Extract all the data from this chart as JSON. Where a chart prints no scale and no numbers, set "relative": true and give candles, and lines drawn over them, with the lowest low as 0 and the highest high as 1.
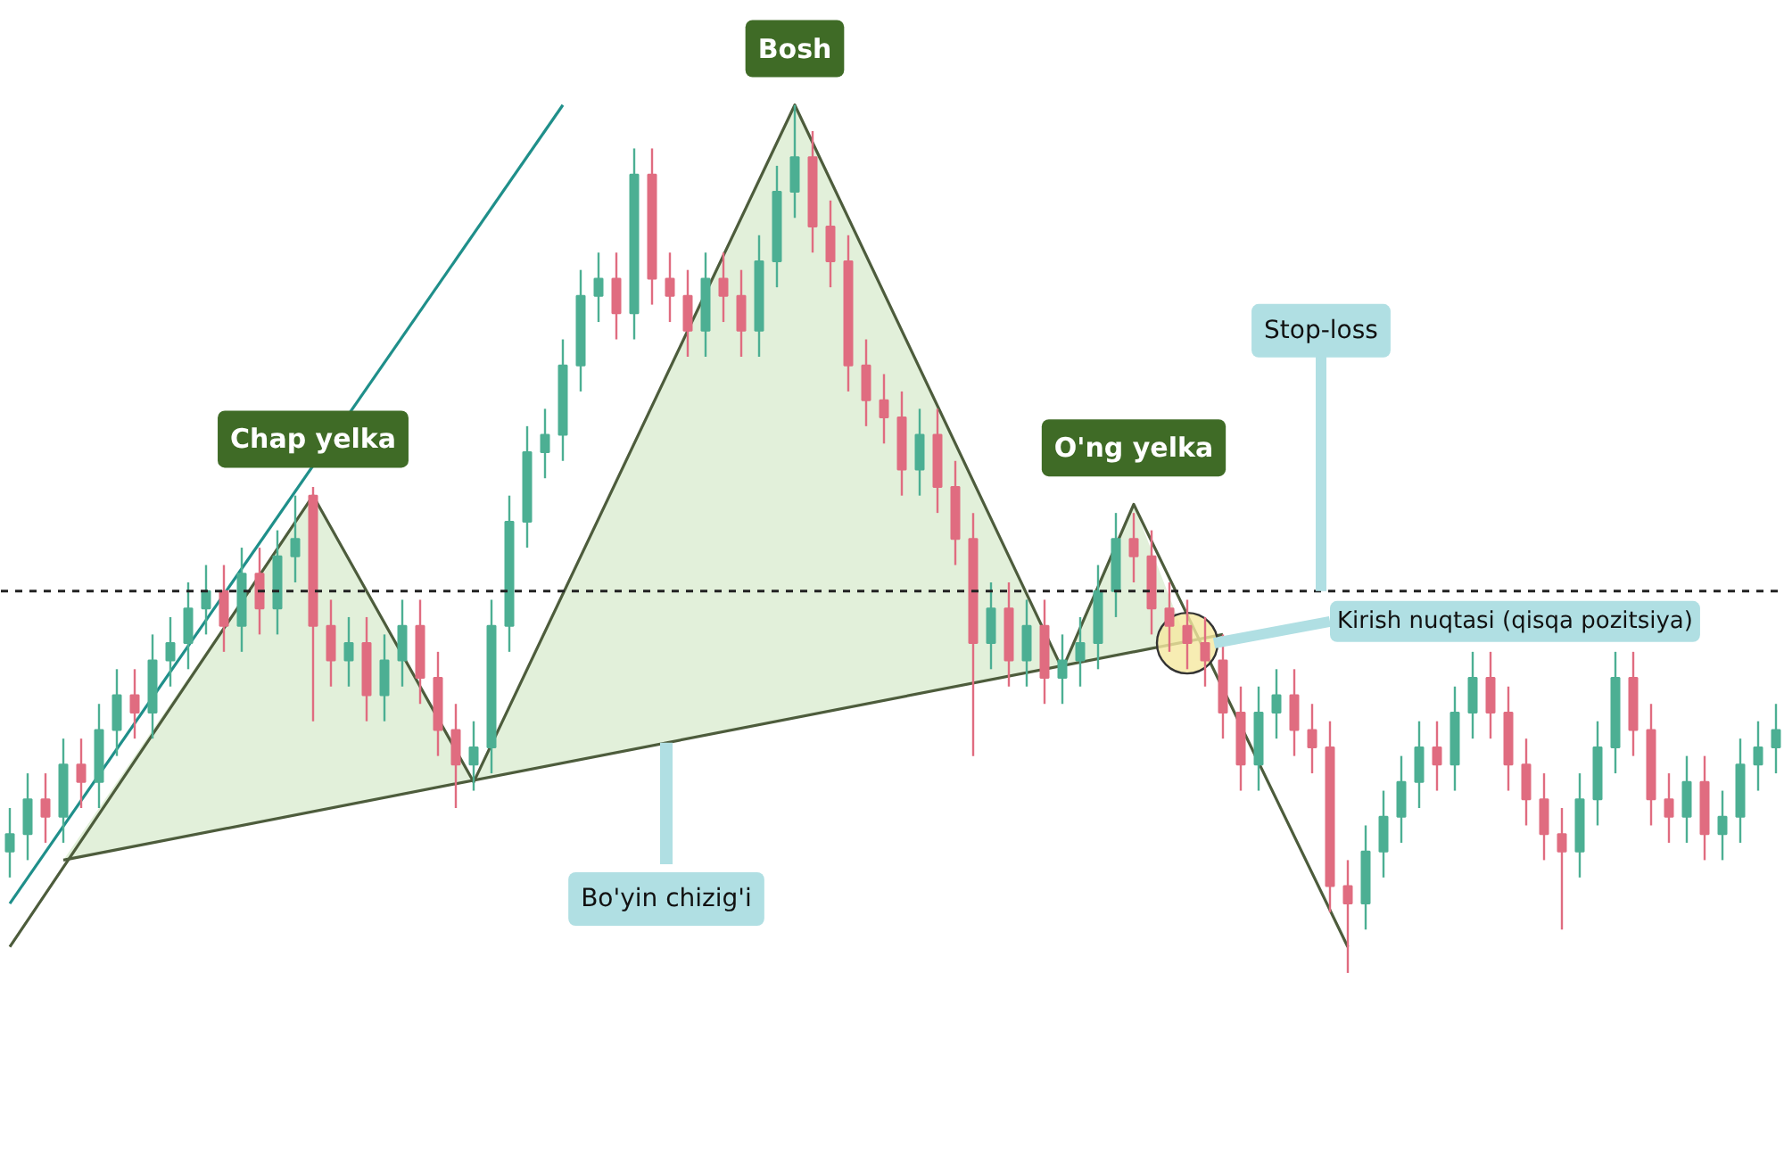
{
  "chart_data": {
    "type": "candlestick",
    "relative": true,
    "categories": [
      null,
      null,
      null,
      null,
      null,
      null,
      null,
      null,
      null,
      null,
      null,
      null,
      null,
      null,
      null,
      null,
      null,
      null,
      null,
      null,
      null,
      null,
      null,
      null,
      null,
      null,
      null,
      null,
      null,
      null,
      null,
      null,
      null,
      null,
      null,
      null,
      null,
      null,
      null,
      null,
      null,
      null,
      null,
      null,
      null,
      null,
      null,
      null,
      null,
      null,
      null,
      null,
      null,
      null,
      null,
      null,
      null,
      null,
      null,
      null,
      null,
      null,
      null,
      null,
      null,
      null,
      null,
      null,
      null,
      null,
      null,
      null,
      null,
      null,
      null,
      null,
      null,
      null,
      null,
      null,
      null,
      null,
      null,
      null,
      null,
      null,
      null,
      null,
      null,
      null,
      null,
      null,
      null,
      null,
      null,
      null,
      null,
      null,
      null,
      null
    ],
    "ohlc": [
      [
        0.14,
        0.19,
        0.11,
        0.16
      ],
      [
        0.16,
        0.23,
        0.13,
        0.2
      ],
      [
        0.2,
        0.23,
        0.15,
        0.18
      ],
      [
        0.18,
        0.27,
        0.15,
        0.24
      ],
      [
        0.24,
        0.27,
        0.19,
        0.22
      ],
      [
        0.22,
        0.31,
        0.19,
        0.28
      ],
      [
        0.28,
        0.35,
        0.25,
        0.32
      ],
      [
        0.32,
        0.35,
        0.27,
        0.3
      ],
      [
        0.3,
        0.39,
        0.27,
        0.36
      ],
      [
        0.36,
        0.41,
        0.33,
        0.38
      ],
      [
        0.38,
        0.45,
        0.35,
        0.42
      ],
      [
        0.42,
        0.47,
        0.39,
        0.44
      ],
      [
        0.44,
        0.47,
        0.37,
        0.4
      ],
      [
        0.4,
        0.49,
        0.37,
        0.46
      ],
      [
        0.46,
        0.49,
        0.39,
        0.42
      ],
      [
        0.42,
        0.51,
        0.39,
        0.48
      ],
      [
        0.48,
        0.55,
        0.45,
        0.5
      ],
      [
        0.55,
        0.56,
        0.29,
        0.4
      ],
      [
        0.4,
        0.43,
        0.33,
        0.36
      ],
      [
        0.36,
        0.41,
        0.33,
        0.38
      ],
      [
        0.38,
        0.41,
        0.29,
        0.32
      ],
      [
        0.32,
        0.39,
        0.29,
        0.36
      ],
      [
        0.36,
        0.43,
        0.33,
        0.4
      ],
      [
        0.4,
        0.43,
        0.31,
        0.34
      ],
      [
        0.34,
        0.37,
        0.25,
        0.28
      ],
      [
        0.28,
        0.31,
        0.19,
        0.24
      ],
      [
        0.24,
        0.29,
        0.21,
        0.26
      ],
      [
        0.26,
        0.43,
        0.23,
        0.4
      ],
      [
        0.4,
        0.55,
        0.37,
        0.52
      ],
      [
        0.52,
        0.63,
        0.49,
        0.6
      ],
      [
        0.6,
        0.65,
        0.57,
        0.62
      ],
      [
        0.62,
        0.73,
        0.59,
        0.7
      ],
      [
        0.7,
        0.81,
        0.67,
        0.78
      ],
      [
        0.78,
        0.83,
        0.75,
        0.8
      ],
      [
        0.8,
        0.83,
        0.73,
        0.76
      ],
      [
        0.76,
        0.95,
        0.73,
        0.92
      ],
      [
        0.92,
        0.95,
        0.77,
        0.8
      ],
      [
        0.8,
        0.83,
        0.75,
        0.78
      ],
      [
        0.78,
        0.81,
        0.71,
        0.74
      ],
      [
        0.74,
        0.83,
        0.71,
        0.8
      ],
      [
        0.8,
        0.83,
        0.75,
        0.78
      ],
      [
        0.78,
        0.81,
        0.71,
        0.74
      ],
      [
        0.74,
        0.85,
        0.71,
        0.82
      ],
      [
        0.82,
        0.93,
        0.79,
        0.9
      ],
      [
        0.9,
        1.0,
        0.87,
        0.94
      ],
      [
        0.94,
        0.97,
        0.83,
        0.86
      ],
      [
        0.86,
        0.89,
        0.79,
        0.82
      ],
      [
        0.82,
        0.85,
        0.67,
        0.7
      ],
      [
        0.7,
        0.73,
        0.63,
        0.66
      ],
      [
        0.66,
        0.69,
        0.61,
        0.64
      ],
      [
        0.64,
        0.67,
        0.55,
        0.58
      ],
      [
        0.58,
        0.65,
        0.55,
        0.62
      ],
      [
        0.62,
        0.65,
        0.53,
        0.56
      ],
      [
        0.56,
        0.59,
        0.47,
        0.5
      ],
      [
        0.5,
        0.53,
        0.25,
        0.38
      ],
      [
        0.38,
        0.45,
        0.35,
        0.42
      ],
      [
        0.42,
        0.45,
        0.33,
        0.36
      ],
      [
        0.36,
        0.43,
        0.33,
        0.4
      ],
      [
        0.4,
        0.43,
        0.31,
        0.34
      ],
      [
        0.34,
        0.39,
        0.31,
        0.36
      ],
      [
        0.36,
        0.41,
        0.33,
        0.38
      ],
      [
        0.38,
        0.47,
        0.35,
        0.44
      ],
      [
        0.44,
        0.53,
        0.41,
        0.5
      ],
      [
        0.5,
        0.53,
        0.45,
        0.48
      ],
      [
        0.48,
        0.51,
        0.39,
        0.42
      ],
      [
        0.42,
        0.45,
        0.37,
        0.4
      ],
      [
        0.4,
        0.43,
        0.35,
        0.38
      ],
      [
        0.38,
        0.41,
        0.33,
        0.36
      ],
      [
        0.36,
        0.39,
        0.27,
        0.3
      ],
      [
        0.3,
        0.33,
        0.21,
        0.24
      ],
      [
        0.24,
        0.33,
        0.21,
        0.3
      ],
      [
        0.3,
        0.35,
        0.27,
        0.32
      ],
      [
        0.32,
        0.35,
        0.25,
        0.28
      ],
      [
        0.28,
        0.31,
        0.23,
        0.26
      ],
      [
        0.26,
        0.29,
        0.07,
        0.1
      ],
      [
        0.1,
        0.13,
        0.0,
        0.08
      ],
      [
        0.08,
        0.17,
        0.05,
        0.14
      ],
      [
        0.14,
        0.21,
        0.11,
        0.18
      ],
      [
        0.18,
        0.25,
        0.15,
        0.22
      ],
      [
        0.22,
        0.29,
        0.19,
        0.26
      ],
      [
        0.26,
        0.29,
        0.21,
        0.24
      ],
      [
        0.24,
        0.33,
        0.21,
        0.3
      ],
      [
        0.3,
        0.37,
        0.27,
        0.34
      ],
      [
        0.34,
        0.37,
        0.27,
        0.3
      ],
      [
        0.3,
        0.33,
        0.21,
        0.24
      ],
      [
        0.24,
        0.27,
        0.17,
        0.2
      ],
      [
        0.2,
        0.23,
        0.13,
        0.16
      ],
      [
        0.16,
        0.19,
        0.05,
        0.14
      ],
      [
        0.14,
        0.23,
        0.11,
        0.2
      ],
      [
        0.2,
        0.29,
        0.17,
        0.26
      ],
      [
        0.26,
        0.37,
        0.23,
        0.34
      ],
      [
        0.34,
        0.37,
        0.25,
        0.28
      ],
      [
        0.28,
        0.31,
        0.17,
        0.2
      ],
      [
        0.2,
        0.23,
        0.15,
        0.18
      ],
      [
        0.18,
        0.25,
        0.15,
        0.22
      ],
      [
        0.22,
        0.25,
        0.13,
        0.16
      ],
      [
        0.16,
        0.21,
        0.13,
        0.18
      ],
      [
        0.18,
        0.27,
        0.15,
        0.24
      ],
      [
        0.24,
        0.29,
        0.21,
        0.26
      ],
      [
        0.26,
        0.31,
        0.23,
        0.28
      ]
    ],
    "colors": [
      "#4caf93",
      "#4caf93",
      "#e06c80",
      "#4caf93",
      "#e06c80",
      "#4caf93",
      "#4caf93",
      "#e06c80",
      "#4caf93",
      "#4caf93",
      "#4caf93",
      "#4caf93",
      "#e06c80",
      "#4caf93",
      "#e06c80",
      "#4caf93",
      "#4caf93",
      "#e06c80",
      "#e06c80",
      "#4caf93",
      "#e06c80",
      "#4caf93",
      "#4caf93",
      "#e06c80",
      "#e06c80",
      "#e06c80",
      "#4caf93",
      "#4caf93",
      "#4caf93",
      "#4caf93",
      "#4caf93",
      "#4caf93",
      "#4caf93",
      "#4caf93",
      "#e06c80",
      "#4caf93",
      "#e06c80",
      "#e06c80",
      "#e06c80",
      "#4caf93",
      "#e06c80",
      "#e06c80",
      "#4caf93",
      "#4caf93",
      "#4caf93",
      "#e06c80",
      "#e06c80",
      "#e06c80",
      "#e06c80",
      "#e06c80",
      "#e06c80",
      "#4caf93",
      "#e06c80",
      "#e06c80",
      "#e06c80",
      "#4caf93",
      "#e06c80",
      "#4caf93",
      "#e06c80",
      "#4caf93",
      "#4caf93",
      "#4caf93",
      "#4caf93",
      "#e06c80",
      "#e06c80",
      "#e06c80",
      "#e06c80",
      "#e06c80",
      "#e06c80",
      "#e06c80",
      "#4caf93",
      "#4caf93",
      "#e06c80",
      "#e06c80",
      "#e06c80",
      "#e06c80",
      "#4caf93",
      "#4caf93",
      "#4caf93",
      "#4caf93",
      "#e06c80",
      "#4caf93",
      "#4caf93",
      "#e06c80",
      "#e06c80",
      "#e06c80",
      "#e06c80",
      "#e06c80",
      "#4caf93",
      "#4caf93",
      "#4caf93",
      "#e06c80",
      "#e06c80",
      "#e06c80",
      "#4caf93",
      "#e06c80",
      "#4caf93",
      "#4caf93",
      "#4caf93",
      "#4caf93"
    ],
    "series": [
      {
        "type": "area",
        "color": "#e2f0da",
        "values": [
          null,
          null,
          null,
          0.13,
          null,
          null,
          null,
          null,
          null,
          null,
          null,
          null,
          null,
          null,
          null,
          null,
          null,
          0.55,
          null,
          null,
          null,
          null,
          null,
          null,
          null,
          null,
          0.22,
          null,
          null,
          null,
          null,
          null,
          null,
          null,
          null,
          null,
          null,
          null,
          null,
          null,
          null,
          null,
          null,
          null,
          1.0,
          null,
          null,
          null,
          null,
          null,
          null,
          null,
          null,
          null,
          null,
          null,
          null,
          null,
          null,
          0.35,
          null,
          null,
          null,
          0.54,
          null,
          null,
          0.38,
          null,
          null,
          null,
          null,
          null,
          null,
          null,
          null,
          null,
          null,
          null,
          null,
          null,
          null,
          null,
          null,
          null,
          null,
          null,
          null,
          null,
          null,
          null,
          null,
          null,
          null,
          null,
          null,
          null,
          null,
          null,
          null,
          null
        ]
      },
      {
        "type": "line",
        "color": "#4d5c3c",
        "values": [
          0.03,
          null,
          null,
          null,
          null,
          null,
          null,
          null,
          null,
          null,
          null,
          null,
          null,
          null,
          null,
          null,
          null,
          0.55,
          null,
          null,
          null,
          null,
          null,
          null,
          null,
          null,
          0.22,
          null,
          null,
          null,
          null,
          null,
          null,
          null,
          null,
          null,
          null,
          null,
          null,
          null,
          null,
          null,
          null,
          null,
          1.0,
          null,
          null,
          null,
          null,
          null,
          null,
          null,
          null,
          null,
          null,
          null,
          null,
          null,
          null,
          0.35,
          null,
          null,
          null,
          0.54,
          null,
          null,
          null,
          null,
          null,
          null,
          null,
          null,
          null,
          null,
          null,
          0.03,
          null,
          null,
          null,
          null,
          null,
          null,
          null,
          null,
          null,
          null,
          null,
          null,
          null,
          null,
          null,
          null,
          null,
          null,
          null,
          null,
          null,
          null,
          null,
          null
        ]
      },
      {
        "type": "line",
        "color": "#4d5c3c",
        "values": [
          null,
          null,
          null,
          0.13,
          null,
          null,
          null,
          null,
          null,
          null,
          null,
          null,
          null,
          null,
          null,
          null,
          null,
          null,
          null,
          null,
          null,
          null,
          null,
          null,
          null,
          null,
          null,
          null,
          null,
          null,
          null,
          null,
          null,
          null,
          null,
          null,
          null,
          null,
          null,
          null,
          null,
          null,
          null,
          null,
          null,
          null,
          null,
          null,
          null,
          null,
          null,
          null,
          null,
          null,
          null,
          null,
          null,
          null,
          null,
          null,
          null,
          null,
          null,
          null,
          null,
          null,
          null,
          null,
          0.39,
          null,
          null,
          null,
          null,
          null,
          null,
          null,
          null,
          null,
          null,
          null,
          null,
          null,
          null,
          null,
          null,
          null,
          null,
          null,
          null,
          null,
          null,
          null,
          null,
          null,
          null,
          null,
          null,
          null,
          null,
          null
        ]
      },
      {
        "type": "line",
        "color": "#1f8f8a",
        "values": [
          0.08,
          null,
          null,
          null,
          null,
          null,
          null,
          null,
          null,
          null,
          null,
          null,
          null,
          null,
          null,
          null,
          null,
          null,
          null,
          null,
          null,
          null,
          null,
          null,
          null,
          null,
          null,
          null,
          null,
          null,
          null,
          1.0,
          null,
          null,
          null,
          null,
          null,
          null,
          null,
          null,
          null,
          null,
          null,
          null,
          null,
          null,
          null,
          null,
          null,
          null,
          null,
          null,
          null,
          null,
          null,
          null,
          null,
          null,
          null,
          null,
          null,
          null,
          null,
          null,
          null,
          null,
          null,
          null,
          null,
          null,
          null,
          null,
          null,
          null,
          null,
          null,
          null,
          null,
          null,
          null,
          null,
          null,
          null,
          null,
          null,
          null,
          null,
          null,
          null,
          null,
          null,
          null,
          null,
          null,
          null,
          null,
          null,
          null,
          null,
          null
        ]
      }
    ],
    "ref_lines": [
      {
        "axis": "y",
        "value": 0.44,
        "label": "Stop-loss",
        "color": "#222222",
        "line_style": "dashed"
      }
    ],
    "annotations": [
      "Chap yelka",
      "Bosh",
      "O'ng yelka",
      "Bo'yin chizig'i",
      "Kirish nuqtasi (qisqa pozitsiya)"
    ]
  }
}
